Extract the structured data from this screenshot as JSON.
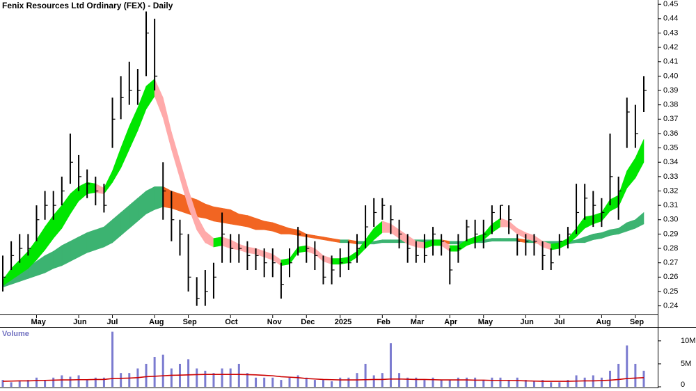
{
  "chart_data": [
    {
      "type": "ohlc",
      "title": "Fenix Resources Ltd Ordinary (FEX) - Daily",
      "categories": [
        null,
        null,
        null,
        null,
        "May",
        null,
        null,
        null,
        null,
        "Jun",
        null,
        null,
        null,
        "Jul",
        null,
        null,
        null,
        null,
        "Aug",
        null,
        null,
        null,
        "Sep",
        null,
        null,
        null,
        null,
        "Oct",
        null,
        null,
        null,
        null,
        "Nov",
        null,
        null,
        null,
        "Dec",
        null,
        null,
        null,
        "2025",
        null,
        null,
        null,
        null,
        "Feb",
        null,
        null,
        null,
        "Mar",
        null,
        null,
        null,
        "Apr",
        null,
        null,
        null,
        "May",
        null,
        null,
        null,
        null,
        "Jun",
        null,
        null,
        null,
        "Jul",
        null,
        null,
        null,
        null,
        "Aug",
        null,
        null,
        null,
        "Sep",
        null
      ],
      "high": [
        0.275,
        0.285,
        0.29,
        0.29,
        0.31,
        0.32,
        0.32,
        0.33,
        0.36,
        0.345,
        0.335,
        0.33,
        0.325,
        0.385,
        0.4,
        0.41,
        0.405,
        0.445,
        0.44,
        0.34,
        0.32,
        0.3,
        0.29,
        0.26,
        0.265,
        0.27,
        0.305,
        0.29,
        0.29,
        0.285,
        0.28,
        0.28,
        0.28,
        0.27,
        0.28,
        0.295,
        0.29,
        0.285,
        0.275,
        0.275,
        0.28,
        0.285,
        0.29,
        0.31,
        0.315,
        0.315,
        0.31,
        0.3,
        0.29,
        0.285,
        0.29,
        0.295,
        0.29,
        0.28,
        0.29,
        0.3,
        0.3,
        0.3,
        0.31,
        0.31,
        0.31,
        0.29,
        0.29,
        0.29,
        0.285,
        0.28,
        0.29,
        0.295,
        0.325,
        0.325,
        0.32,
        0.315,
        0.36,
        0.33,
        0.385,
        0.38,
        0.4
      ],
      "low": [
        0.25,
        0.265,
        0.27,
        0.275,
        0.285,
        0.3,
        0.3,
        0.31,
        0.325,
        0.32,
        0.315,
        0.31,
        0.305,
        0.35,
        0.37,
        0.38,
        0.38,
        0.4,
        0.39,
        0.3,
        0.285,
        0.275,
        0.25,
        0.24,
        0.24,
        0.245,
        0.27,
        0.27,
        0.27,
        0.265,
        0.265,
        0.26,
        0.26,
        0.245,
        0.26,
        0.275,
        0.27,
        0.265,
        0.255,
        0.255,
        0.26,
        0.265,
        0.27,
        0.28,
        0.295,
        0.3,
        0.29,
        0.28,
        0.27,
        0.27,
        0.27,
        0.275,
        0.275,
        0.255,
        0.27,
        0.285,
        0.28,
        0.28,
        0.29,
        0.3,
        0.29,
        0.275,
        0.275,
        0.275,
        0.265,
        0.265,
        0.275,
        0.28,
        0.29,
        0.3,
        0.295,
        0.295,
        0.31,
        0.3,
        0.35,
        0.35,
        0.375
      ],
      "close": [
        0.26,
        0.275,
        0.28,
        0.28,
        0.3,
        0.31,
        0.31,
        0.32,
        0.34,
        0.33,
        0.325,
        0.32,
        0.31,
        0.37,
        0.385,
        0.39,
        0.39,
        0.43,
        0.4,
        0.32,
        0.3,
        0.29,
        0.26,
        0.245,
        0.25,
        0.26,
        0.29,
        0.28,
        0.28,
        0.275,
        0.275,
        0.27,
        0.27,
        0.255,
        0.27,
        0.29,
        0.28,
        0.275,
        0.26,
        0.265,
        0.27,
        0.27,
        0.28,
        0.295,
        0.305,
        0.31,
        0.3,
        0.29,
        0.28,
        0.275,
        0.275,
        0.29,
        0.285,
        0.265,
        0.28,
        0.295,
        0.29,
        0.29,
        0.305,
        0.31,
        0.3,
        0.285,
        0.285,
        0.285,
        0.275,
        0.27,
        0.285,
        0.29,
        0.305,
        0.315,
        0.31,
        0.305,
        0.33,
        0.32,
        0.375,
        0.36,
        0.39
      ],
      "color": "#000000",
      "ribbons": [
        {
          "rising_color": "#3cb371",
          "falling_color": "#f26522",
          "upper": [
            0.255,
            0.259,
            0.263,
            0.267,
            0.271,
            0.275,
            0.278,
            0.282,
            0.285,
            0.288,
            0.291,
            0.293,
            0.295,
            0.3,
            0.305,
            0.31,
            0.315,
            0.32,
            0.323,
            0.323,
            0.32,
            0.318,
            0.316,
            0.314,
            0.311,
            0.309,
            0.308,
            0.307,
            0.304,
            0.303,
            0.301,
            0.299,
            0.298,
            0.296,
            0.294,
            0.293,
            0.29,
            0.289,
            0.288,
            0.287,
            0.286,
            0.286,
            0.285,
            0.285,
            0.285,
            0.286,
            0.286,
            0.286,
            0.286,
            0.286,
            0.286,
            0.286,
            0.286,
            0.285,
            0.285,
            0.285,
            0.286,
            0.286,
            0.287,
            0.287,
            0.287,
            0.287,
            0.286,
            0.286,
            0.285,
            0.285,
            0.285,
            0.285,
            0.286,
            0.288,
            0.29,
            0.291,
            0.293,
            0.294,
            0.298,
            0.3,
            0.305
          ],
          "lower": [
            0.253,
            0.255,
            0.257,
            0.259,
            0.261,
            0.263,
            0.266,
            0.268,
            0.271,
            0.274,
            0.277,
            0.279,
            0.281,
            0.284,
            0.289,
            0.294,
            0.299,
            0.304,
            0.307,
            0.309,
            0.308,
            0.306,
            0.304,
            0.302,
            0.301,
            0.299,
            0.298,
            0.297,
            0.296,
            0.295,
            0.293,
            0.293,
            0.292,
            0.29,
            0.29,
            0.289,
            0.288,
            0.287,
            0.286,
            0.285,
            0.284,
            0.284,
            0.283,
            0.283,
            0.283,
            0.284,
            0.284,
            0.284,
            0.284,
            0.284,
            0.284,
            0.284,
            0.284,
            0.283,
            0.283,
            0.283,
            0.284,
            0.284,
            0.285,
            0.285,
            0.285,
            0.285,
            0.284,
            0.284,
            0.283,
            0.283,
            0.283,
            0.283,
            0.284,
            0.284,
            0.286,
            0.287,
            0.289,
            0.29,
            0.292,
            0.294,
            0.297
          ]
        },
        {
          "rising_color": "#00e600",
          "falling_color": "#ffaaaa",
          "upper": [
            0.258,
            0.266,
            0.272,
            0.278,
            0.286,
            0.295,
            0.303,
            0.31,
            0.318,
            0.323,
            0.326,
            0.325,
            0.322,
            0.334,
            0.35,
            0.365,
            0.378,
            0.393,
            0.398,
            0.385,
            0.361,
            0.341,
            0.321,
            0.303,
            0.292,
            0.287,
            0.288,
            0.286,
            0.283,
            0.281,
            0.28,
            0.278,
            0.276,
            0.272,
            0.273,
            0.281,
            0.282,
            0.28,
            0.275,
            0.273,
            0.273,
            0.274,
            0.278,
            0.286,
            0.294,
            0.299,
            0.297,
            0.293,
            0.289,
            0.285,
            0.284,
            0.286,
            0.286,
            0.282,
            0.282,
            0.286,
            0.288,
            0.29,
            0.297,
            0.301,
            0.299,
            0.294,
            0.291,
            0.289,
            0.285,
            0.283,
            0.284,
            0.287,
            0.294,
            0.302,
            0.303,
            0.305,
            0.314,
            0.317,
            0.334,
            0.343,
            0.356
          ],
          "lower": [
            0.254,
            0.258,
            0.262,
            0.266,
            0.272,
            0.279,
            0.287,
            0.294,
            0.304,
            0.313,
            0.318,
            0.319,
            0.318,
            0.326,
            0.336,
            0.349,
            0.362,
            0.377,
            0.386,
            0.371,
            0.349,
            0.329,
            0.309,
            0.293,
            0.284,
            0.281,
            0.282,
            0.28,
            0.279,
            0.277,
            0.276,
            0.274,
            0.272,
            0.268,
            0.269,
            0.277,
            0.278,
            0.276,
            0.271,
            0.269,
            0.269,
            0.27,
            0.274,
            0.28,
            0.286,
            0.291,
            0.291,
            0.287,
            0.283,
            0.281,
            0.28,
            0.282,
            0.282,
            0.278,
            0.278,
            0.282,
            0.284,
            0.286,
            0.291,
            0.295,
            0.295,
            0.29,
            0.287,
            0.285,
            0.281,
            0.279,
            0.28,
            0.283,
            0.288,
            0.294,
            0.297,
            0.299,
            0.306,
            0.309,
            0.322,
            0.329,
            0.34
          ]
        }
      ],
      "ylim": [
        0.234,
        0.453
      ],
      "yticks": [
        0.24,
        0.25,
        0.26,
        0.27,
        0.28,
        0.29,
        {
          "value": 0.3,
          "label": "0.30"
        },
        0.31,
        0.32,
        0.33,
        0.34,
        0.35,
        0.36,
        0.37,
        0.38,
        0.39,
        {
          "value": 0.4,
          "label": "0.40"
        },
        0.41,
        0.42,
        0.43,
        0.44,
        0.45
      ]
    },
    {
      "type": "bar",
      "title": "Volume",
      "color": "#7b7bd0",
      "values": [
        1.5,
        1,
        1.2,
        1.5,
        2,
        1.5,
        2,
        2.5,
        2.2,
        2.5,
        1.5,
        2,
        2,
        12,
        3,
        3,
        4,
        5,
        6.5,
        7,
        4,
        5,
        6,
        4,
        3.5,
        3,
        4,
        4,
        5,
        3,
        2,
        2,
        2,
        1.5,
        2,
        2.5,
        2,
        1.5,
        1.5,
        1.2,
        2,
        2,
        3,
        5,
        2.5,
        3,
        9.5,
        3,
        2,
        2,
        1.5,
        2,
        1.5,
        1.5,
        2,
        2,
        2,
        1.5,
        2,
        2,
        1.5,
        2,
        1.5,
        1.2,
        1.5,
        1,
        1,
        1.5,
        2.5,
        2,
        2.5,
        2,
        3.5,
        5,
        9,
        5,
        3.5
      ],
      "moving_average": {
        "color": "#cc0000",
        "values": [
          1.2,
          1.25,
          1.3,
          1.3,
          1.35,
          1.4,
          1.45,
          1.5,
          1.5,
          1.55,
          1.55,
          1.6,
          1.6,
          1.8,
          1.85,
          1.9,
          2.0,
          2.2,
          2.3,
          2.4,
          2.5,
          2.55,
          2.6,
          2.65,
          2.7,
          2.7,
          2.7,
          2.7,
          2.7,
          2.65,
          2.6,
          2.5,
          2.4,
          2.2,
          2.1,
          2.0,
          1.8,
          1.7,
          1.6,
          1.55,
          1.5,
          1.5,
          1.5,
          1.55,
          1.6,
          1.6,
          1.7,
          1.7,
          1.65,
          1.6,
          1.6,
          1.55,
          1.5,
          1.5,
          1.5,
          1.5,
          1.45,
          1.45,
          1.4,
          1.4,
          1.4,
          1.35,
          1.3,
          1.25,
          1.2,
          1.2,
          1.2,
          1.2,
          1.25,
          1.3,
          1.3,
          1.35,
          1.45,
          1.6,
          1.8,
          1.9,
          2.0
        ]
      },
      "ylim": [
        0,
        11.8
      ],
      "yticks": [
        0,
        {
          "value": 5,
          "label": "5M"
        },
        {
          "value": 10,
          "label": "10M"
        }
      ]
    }
  ]
}
